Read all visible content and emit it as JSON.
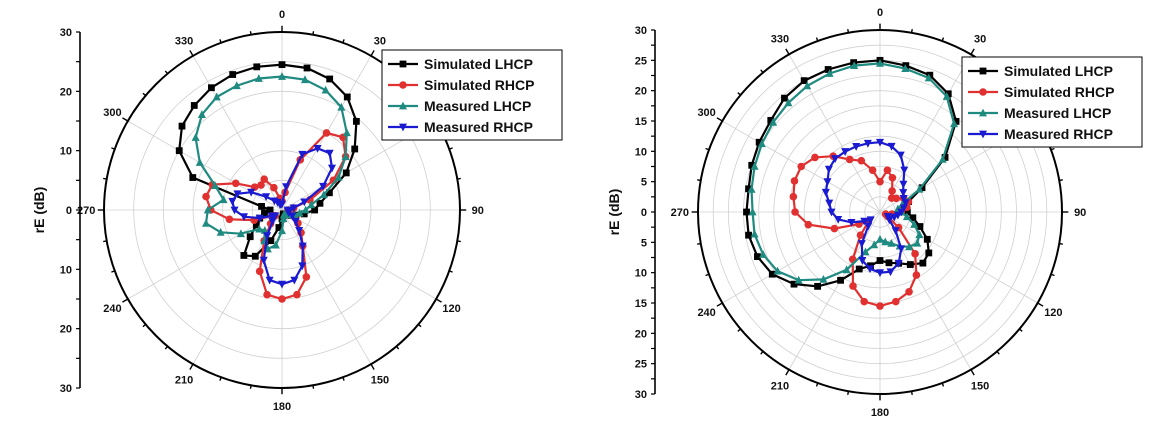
{
  "chart_data": [
    {
      "type": "polar-line",
      "ylabel": "rE (dB)",
      "radial_ticks": [
        0,
        10,
        20,
        30
      ],
      "radial_range": [
        0,
        30
      ],
      "angle_labels": [
        "0",
        "30",
        "90",
        "120",
        "150",
        "180",
        "210",
        "240",
        "270",
        "300",
        "330"
      ],
      "angle_label_angles": [
        0,
        30,
        90,
        120,
        150,
        180,
        210,
        240,
        270,
        300,
        330
      ],
      "grid": true,
      "legend": "top-right",
      "series": [
        {
          "name": "Simulated LHCP",
          "color": "#000000",
          "marker": "square",
          "theta": [
            0,
            10,
            20,
            30,
            40,
            50,
            60,
            70,
            80,
            90,
            100,
            110,
            120,
            130,
            140,
            150,
            160,
            170,
            180,
            190,
            200,
            210,
            220,
            230,
            240,
            250,
            260,
            270,
            280,
            290,
            300,
            310,
            320,
            330,
            340,
            350
          ],
          "r": [
            24.5,
            24.3,
            23.5,
            22,
            19.5,
            16,
            12.5,
            8.5,
            6.5,
            5.5,
            3.8,
            2.5,
            1.8,
            1.3,
            1,
            0.8,
            0.7,
            1,
            1.5,
            3,
            5.5,
            9,
            10,
            7,
            5,
            4,
            3,
            2,
            3.5,
            16,
            20,
            22,
            23,
            23.8,
            24.3,
            24.5
          ]
        },
        {
          "name": "Simulated RHCP",
          "color": "#e03030",
          "marker": "circle",
          "theta": [
            0,
            10,
            20,
            30,
            40,
            50,
            60,
            70,
            80,
            90,
            100,
            110,
            120,
            130,
            140,
            150,
            160,
            170,
            180,
            190,
            200,
            210,
            220,
            230,
            240,
            250,
            260,
            270,
            280,
            290,
            300,
            310,
            320,
            330,
            340,
            350
          ],
          "r": [
            1.5,
            3,
            9,
            15,
            16,
            14,
            10,
            5,
            2,
            1,
            1,
            1.5,
            2.5,
            3.5,
            5,
            7,
            12,
            14.5,
            15,
            14.5,
            11,
            6,
            3,
            1.5,
            2,
            5,
            9,
            12,
            13,
            12.5,
            9,
            6,
            5.5,
            6,
            4,
            2
          ]
        },
        {
          "name": "Measured LHCP",
          "color": "#1f8a80",
          "marker": "triangle-up",
          "theta": [
            0,
            10,
            20,
            30,
            40,
            50,
            60,
            70,
            80,
            90,
            100,
            110,
            120,
            130,
            140,
            150,
            160,
            170,
            180,
            190,
            200,
            210,
            220,
            230,
            240,
            250,
            260,
            270,
            280,
            290,
            300,
            310,
            320,
            330,
            340,
            350
          ],
          "r": [
            22.5,
            22.3,
            21.5,
            20,
            17,
            14,
            11,
            7.5,
            5,
            4,
            3,
            2.2,
            1.6,
            1.2,
            1,
            0.8,
            0.9,
            1.5,
            3.5,
            6,
            7,
            6,
            4.5,
            5,
            8,
            11,
            13,
            12.5,
            10,
            12,
            16,
            19,
            21,
            22,
            22.3,
            22.5
          ]
        },
        {
          "name": "Measured RHCP",
          "color": "#1a1ad0",
          "marker": "triangle-down",
          "theta": [
            0,
            10,
            20,
            30,
            40,
            50,
            60,
            70,
            80,
            90,
            100,
            110,
            120,
            130,
            140,
            150,
            160,
            170,
            180,
            190,
            200,
            210,
            220,
            230,
            240,
            250,
            260,
            270,
            280,
            290,
            300,
            310,
            320,
            330,
            340,
            350
          ],
          "r": [
            1,
            4,
            10,
            12,
            12.5,
            11,
            8,
            4,
            2,
            1,
            1,
            1.2,
            2,
            3,
            4.5,
            7,
            10,
            12,
            12.5,
            12,
            9,
            5,
            2.5,
            1.5,
            2,
            4,
            6.5,
            8,
            8.5,
            8,
            6,
            3.5,
            2,
            1.5,
            1,
            1
          ]
        }
      ]
    },
    {
      "type": "polar-line",
      "ylabel": "rE (dB)",
      "radial_ticks": [
        0,
        5,
        10,
        15,
        20,
        25,
        30
      ],
      "radial_range": [
        0,
        30
      ],
      "angle_labels": [
        "0",
        "30",
        "90",
        "120",
        "150",
        "180",
        "210",
        "240",
        "270",
        "300",
        "330"
      ],
      "angle_label_angles": [
        0,
        30,
        90,
        120,
        150,
        180,
        210,
        240,
        270,
        300,
        330
      ],
      "grid": true,
      "legend": "top-right",
      "series": [
        {
          "name": "Simulated LHCP",
          "color": "#000000",
          "marker": "square",
          "theta": [
            0,
            10,
            20,
            30,
            40,
            50,
            60,
            70,
            80,
            90,
            100,
            110,
            120,
            130,
            140,
            150,
            160,
            170,
            180,
            190,
            200,
            210,
            220,
            230,
            240,
            250,
            260,
            270,
            280,
            290,
            300,
            310,
            320,
            330,
            340,
            350
          ],
          "r": [
            25,
            24.5,
            24,
            22.5,
            19.5,
            14,
            8,
            5,
            4,
            4.5,
            5.5,
            7,
            9,
            10.5,
            11,
            10,
            9,
            8.5,
            8,
            9,
            10,
            13,
            16,
            18.5,
            20.5,
            21.5,
            22,
            22,
            22,
            22.5,
            23,
            23.5,
            24.5,
            25,
            25,
            25
          ]
        },
        {
          "name": "Simulated RHCP",
          "color": "#e03030",
          "marker": "circle",
          "theta": [
            0,
            10,
            20,
            30,
            40,
            50,
            60,
            70,
            80,
            90,
            100,
            110,
            120,
            130,
            140,
            150,
            160,
            170,
            180,
            190,
            200,
            210,
            220,
            230,
            240,
            250,
            260,
            270,
            280,
            290,
            300,
            310,
            320,
            330,
            340,
            350
          ],
          "r": [
            5,
            7,
            6,
            4,
            3,
            3.5,
            4.5,
            5,
            4.5,
            3.5,
            2,
            1,
            1.5,
            4,
            9,
            12,
            14,
            15,
            15.5,
            15,
            13,
            9,
            5,
            2.5,
            4,
            8,
            12,
            14,
            14.5,
            15,
            15,
            14,
            12,
            10,
            9,
            7
          ]
        },
        {
          "name": "Measured LHCP",
          "color": "#1f8a80",
          "marker": "triangle-up",
          "theta": [
            0,
            10,
            20,
            30,
            40,
            50,
            60,
            70,
            80,
            90,
            100,
            110,
            120,
            130,
            140,
            150,
            160,
            170,
            180,
            190,
            200,
            210,
            220,
            230,
            240,
            250,
            260,
            270,
            280,
            290,
            300,
            310,
            320,
            330,
            340,
            350
          ],
          "r": [
            24.5,
            24,
            23.5,
            22,
            19,
            13.5,
            7.5,
            4,
            3,
            3.5,
            4.5,
            6,
            7.5,
            8,
            7.5,
            6.5,
            5.5,
            5,
            4.5,
            5.5,
            7,
            11,
            14.5,
            17.5,
            19.5,
            20.5,
            21,
            21,
            21.5,
            22,
            22.5,
            23,
            23.5,
            24,
            24.3,
            24.5
          ]
        },
        {
          "name": "Measured RHCP",
          "color": "#1a1ad0",
          "marker": "triangle-down",
          "theta": [
            0,
            10,
            20,
            30,
            40,
            50,
            60,
            70,
            80,
            90,
            100,
            110,
            120,
            130,
            140,
            150,
            160,
            170,
            180,
            190,
            200,
            210,
            220,
            230,
            240,
            250,
            260,
            270,
            280,
            290,
            300,
            310,
            320,
            330,
            340,
            350
          ],
          "r": [
            11.5,
            11,
            10,
            8,
            6,
            5,
            4.5,
            4.5,
            4,
            3.5,
            3,
            2.5,
            1.5,
            2,
            4,
            7,
            9,
            10,
            10,
            9.5,
            8.5,
            6,
            3,
            2,
            3,
            5,
            7,
            8,
            8.5,
            9.5,
            10,
            11,
            11.5,
            11.5,
            11.5,
            11.5
          ]
        }
      ]
    }
  ]
}
